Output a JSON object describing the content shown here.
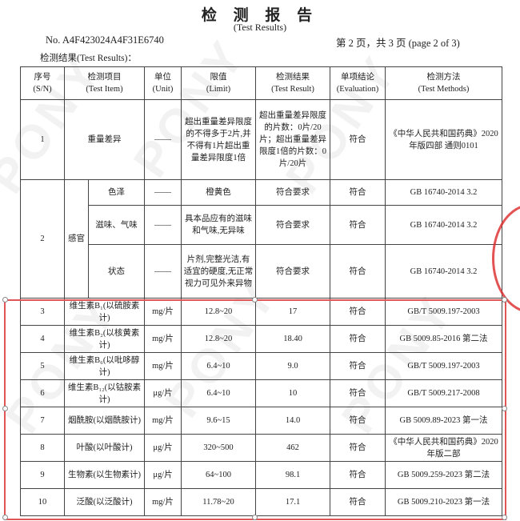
{
  "header": {
    "title": "检 测 报 告",
    "subtitle": "(Test Results)",
    "report_no": "No. A4F423024A4F31E6740",
    "page_info": "第 2 页，共 3 页 (page 2 of 3)",
    "results_label": "检测结果(Test Results)："
  },
  "columns": [
    {
      "cn": "序号",
      "en": "(S/N)"
    },
    {
      "cn": "检测项目",
      "en": "(Test Item)"
    },
    {
      "cn": "单位",
      "en": "(Unit)"
    },
    {
      "cn": "限值",
      "en": "(Limit)"
    },
    {
      "cn": "检测结果",
      "en": "(Test Result)"
    },
    {
      "cn": "单项结论",
      "en": "(Evaluation)"
    },
    {
      "cn": "检测方法",
      "en": "(Test Methods)"
    }
  ],
  "row1": {
    "sn": "1",
    "item": "重量差异",
    "unit": "——",
    "limit": "超出重量差异限度的不得多于2片,并不得有1片超出重量差异限度1倍",
    "result": "超出重量差异限度的片数：0片/20片；超出重量差异限度1倍的片数：0片/20片",
    "evaluation": "符合",
    "method": "《中华人民共和国药典》2020年版四部 通则0101"
  },
  "row2": {
    "sn": "2",
    "group": "感官",
    "subs": [
      {
        "item": "色泽",
        "unit": "——",
        "limit": "橙黄色",
        "result": "符合要求",
        "evaluation": "符合",
        "method": "GB 16740-2014 3.2"
      },
      {
        "item": "滋味、气味",
        "unit": "——",
        "limit": "具本品应有的滋味和气味,无异味",
        "result": "符合要求",
        "evaluation": "符合",
        "method": "GB 16740-2014 3.2"
      },
      {
        "item": "状态",
        "unit": "——",
        "limit": "片剂,完整光洁,有适宜的硬度,无正常视力可见外来异物",
        "result": "符合要求",
        "evaluation": "符合",
        "method": "GB 16740-2014 3.2"
      }
    ]
  },
  "rows": [
    {
      "sn": "3",
      "item": "维生素B₁(以硫胺素计)",
      "unit": "mg/片",
      "limit": "12.8~20",
      "result": "17",
      "evaluation": "符合",
      "method": "GB/T 5009.197-2003"
    },
    {
      "sn": "4",
      "item": "维生素B₂(以核黄素计)",
      "unit": "mg/片",
      "limit": "12.8~20",
      "result": "18.40",
      "evaluation": "符合",
      "method": "GB 5009.85-2016 第二法"
    },
    {
      "sn": "5",
      "item": "维生素B₆(以吡哆醇计)",
      "unit": "mg/片",
      "limit": "6.4~10",
      "result": "9.0",
      "evaluation": "符合",
      "method": "GB/T 5009.197-2003"
    },
    {
      "sn": "6",
      "item": "维生素B₁₂(以钴胺素计)",
      "unit": "μg/片",
      "limit": "6.4~10",
      "result": "10",
      "evaluation": "符合",
      "method": "GB/T 5009.217-2008"
    },
    {
      "sn": "7",
      "item": "烟酰胺(以烟酰胺计)",
      "unit": "mg/片",
      "limit": "9.6~15",
      "result": "14.0",
      "evaluation": "符合",
      "method": "GB 5009.89-2023 第一法"
    },
    {
      "sn": "8",
      "item": "叶酸(以叶酸计)",
      "unit": "μg/片",
      "limit": "320~500",
      "result": "462",
      "evaluation": "符合",
      "method": "《中华人民共和国药典》2020年版二部"
    },
    {
      "sn": "9",
      "item": "生物素(以生物素计)",
      "unit": "μg/片",
      "limit": "64~100",
      "result": "98.1",
      "evaluation": "符合",
      "method": "GB 5009.259-2023 第二法"
    },
    {
      "sn": "10",
      "item": "泛酸(以泛酸计)",
      "unit": "mg/片",
      "limit": "11.78~20",
      "result": "17.1",
      "evaluation": "符合",
      "method": "GB 5009.210-2023 第一法"
    }
  ],
  "watermark": "PONY",
  "colors": {
    "selection": "#e05555",
    "stamp": "#dc2828"
  }
}
